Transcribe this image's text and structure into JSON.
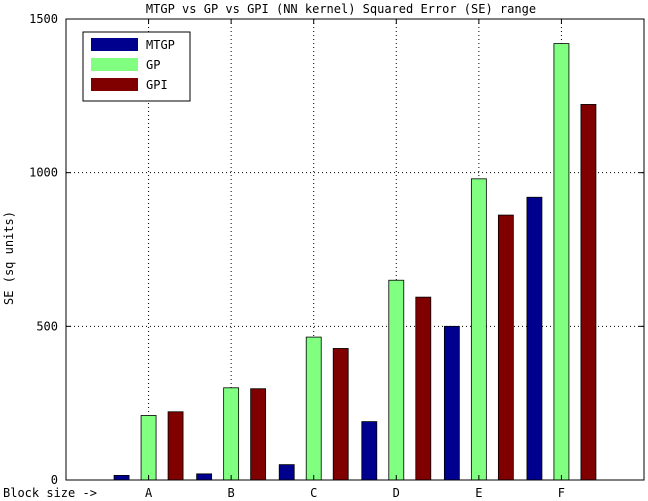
{
  "chart_data": {
    "type": "bar",
    "title": "MTGP vs GP vs GPI (NN kernel) Squared Error (SE) range",
    "xlabel": "",
    "ylabel": "SE (sq units)",
    "x_prefix_label": "Block size ->",
    "categories": [
      "A",
      "B",
      "C",
      "D",
      "E",
      "F"
    ],
    "ylim": [
      0,
      1500
    ],
    "yticks": [
      0,
      500,
      1000,
      1500
    ],
    "grid": true,
    "legend_position": "top-left",
    "series": [
      {
        "name": "MTGP",
        "color": "#00008f",
        "values": [
          15,
          20,
          50,
          190,
          500,
          920
        ]
      },
      {
        "name": "GP",
        "color": "#80ff80",
        "values": [
          210,
          300,
          465,
          650,
          980,
          1420
        ]
      },
      {
        "name": "GPI",
        "color": "#800000",
        "values": [
          222,
          297,
          428,
          595,
          862,
          1222
        ]
      }
    ]
  }
}
